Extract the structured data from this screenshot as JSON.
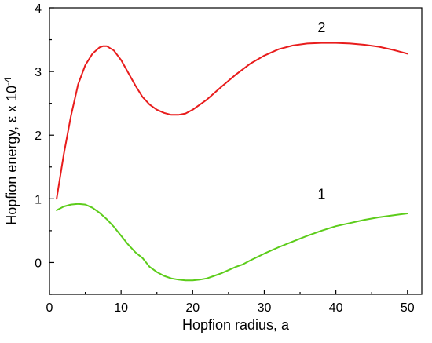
{
  "chart_data": {
    "type": "line",
    "xlabel": "Hopfion radius, a",
    "ylabel": "Hopfion energy, ε x 10",
    "ylabel_exponent": "-4",
    "xlim": [
      0,
      52
    ],
    "ylim": [
      -0.5,
      4
    ],
    "x_ticks": [
      0,
      10,
      20,
      30,
      40,
      50
    ],
    "y_ticks": [
      0,
      1,
      2,
      3,
      4
    ],
    "x_tick_labels": [
      "0",
      "10",
      "20",
      "30",
      "40",
      "50"
    ],
    "y_tick_labels": [
      "0",
      "1",
      "2",
      "3",
      "4"
    ],
    "grid": false,
    "series": [
      {
        "label": "1",
        "color": "#5ccc1a",
        "points": [
          [
            1,
            0.82
          ],
          [
            2,
            0.88
          ],
          [
            3,
            0.91
          ],
          [
            4,
            0.92
          ],
          [
            5,
            0.91
          ],
          [
            6,
            0.86
          ],
          [
            7,
            0.78
          ],
          [
            8,
            0.68
          ],
          [
            9,
            0.56
          ],
          [
            10,
            0.42
          ],
          [
            11,
            0.28
          ],
          [
            12,
            0.16
          ],
          [
            13,
            0.07
          ],
          [
            14,
            -0.07
          ],
          [
            15,
            -0.15
          ],
          [
            16,
            -0.21
          ],
          [
            17,
            -0.25
          ],
          [
            18,
            -0.27
          ],
          [
            19,
            -0.28
          ],
          [
            20,
            -0.28
          ],
          [
            21,
            -0.27
          ],
          [
            22,
            -0.25
          ],
          [
            23,
            -0.21
          ],
          [
            24,
            -0.17
          ],
          [
            25,
            -0.12
          ],
          [
            26,
            -0.07
          ],
          [
            27,
            -0.03
          ],
          [
            28,
            0.03
          ],
          [
            30,
            0.14
          ],
          [
            32,
            0.24
          ],
          [
            34,
            0.33
          ],
          [
            36,
            0.42
          ],
          [
            38,
            0.5
          ],
          [
            40,
            0.57
          ],
          [
            42,
            0.62
          ],
          [
            44,
            0.67
          ],
          [
            46,
            0.71
          ],
          [
            48,
            0.74
          ],
          [
            50,
            0.77
          ]
        ],
        "label_position": [
          38,
          1.0
        ]
      },
      {
        "label": "2",
        "color": "#e81c1c",
        "points": [
          [
            1,
            1.0
          ],
          [
            2,
            1.7
          ],
          [
            3,
            2.3
          ],
          [
            4,
            2.8
          ],
          [
            5,
            3.1
          ],
          [
            6,
            3.28
          ],
          [
            7,
            3.38
          ],
          [
            7.5,
            3.4
          ],
          [
            8,
            3.4
          ],
          [
            9,
            3.33
          ],
          [
            10,
            3.18
          ],
          [
            11,
            2.98
          ],
          [
            12,
            2.78
          ],
          [
            13,
            2.6
          ],
          [
            14,
            2.48
          ],
          [
            15,
            2.4
          ],
          [
            16,
            2.35
          ],
          [
            17,
            2.32
          ],
          [
            18,
            2.32
          ],
          [
            19,
            2.34
          ],
          [
            20,
            2.4
          ],
          [
            22,
            2.56
          ],
          [
            24,
            2.76
          ],
          [
            26,
            2.95
          ],
          [
            28,
            3.12
          ],
          [
            30,
            3.25
          ],
          [
            32,
            3.35
          ],
          [
            34,
            3.41
          ],
          [
            36,
            3.44
          ],
          [
            38,
            3.45
          ],
          [
            40,
            3.45
          ],
          [
            42,
            3.44
          ],
          [
            44,
            3.42
          ],
          [
            46,
            3.39
          ],
          [
            48,
            3.34
          ],
          [
            50,
            3.28
          ]
        ],
        "label_position": [
          38,
          3.62
        ]
      }
    ]
  }
}
